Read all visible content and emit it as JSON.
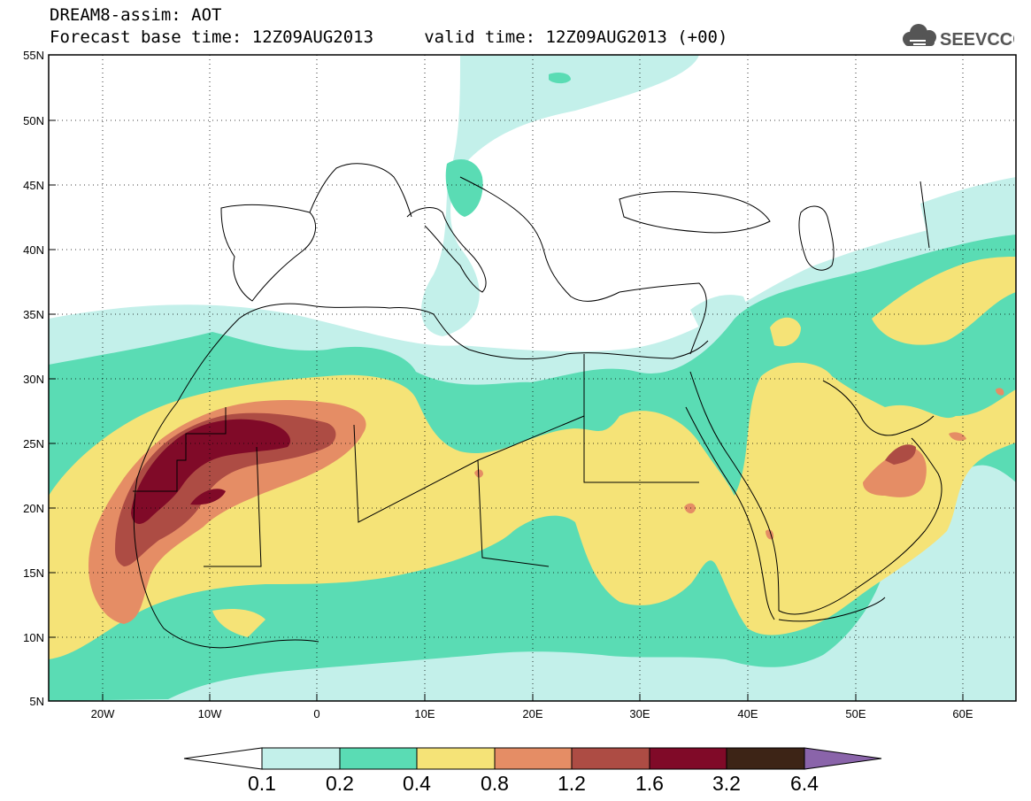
{
  "header": {
    "model_title": "DREAM8-assim: AOT",
    "forecast_line": "Forecast base time: 12Z09AUG2013     valid time: 12Z09AUG2013 (+00)",
    "logo_text": "SEEVCCC"
  },
  "map": {
    "lat_labels": [
      "55N",
      "50N",
      "45N",
      "40N",
      "35N",
      "30N",
      "25N",
      "20N",
      "15N",
      "10N",
      "5N"
    ],
    "lon_labels": [
      "20W",
      "10W",
      "0",
      "10E",
      "20E",
      "30E",
      "40E",
      "50E",
      "60E"
    ],
    "lat_range": [
      5,
      55
    ],
    "lon_range": [
      -25,
      65
    ],
    "projection": "lat-lon",
    "grid": "dotted"
  },
  "colorbar": {
    "levels": [
      "0.1",
      "0.2",
      "0.4",
      "0.8",
      "1.2",
      "1.6",
      "3.2",
      "6.4"
    ],
    "colors": [
      "#ffffff",
      "#c3f0ea",
      "#5adcb4",
      "#f5e377",
      "#e58d65",
      "#ad4c44",
      "#800a28",
      "#3d2416",
      "#8a64aa"
    ]
  }
}
